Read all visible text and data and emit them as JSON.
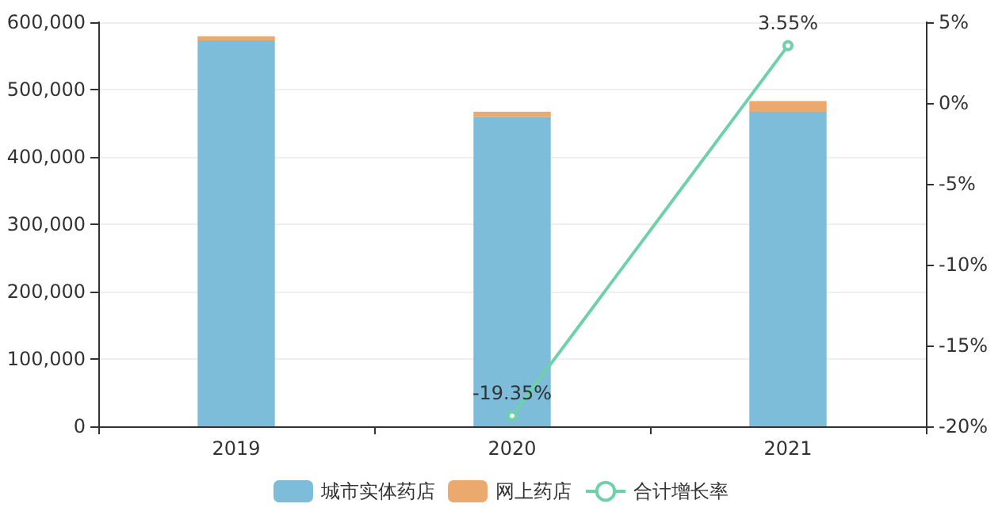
{
  "chart_data": {
    "type": "bar",
    "categories": [
      "2019",
      "2020",
      "2021"
    ],
    "stacked": true,
    "series": [
      {
        "name": "城市实体药店",
        "color": "#7dbdd9",
        "values": [
          573000,
          459000,
          467000
        ]
      },
      {
        "name": "网上药店",
        "color": "#eba96e",
        "values": [
          6000,
          8000,
          16000
        ]
      },
      {
        "name": "合计增长率",
        "type": "line",
        "axis": "y2",
        "color": "#6fd1a9",
        "values": [
          null,
          -19.35,
          3.55
        ],
        "value_labels": [
          null,
          "-19.35%",
          "3.55%"
        ],
        "marker": "circle"
      }
    ],
    "ylim": [
      0,
      600000
    ],
    "yticks": [
      0,
      {
        "value": 100000,
        "label": "100,000"
      },
      {
        "value": 200000,
        "label": "200,000"
      },
      {
        "value": 300000,
        "label": "300,000"
      },
      {
        "value": 400000,
        "label": "400,000"
      },
      {
        "value": 500000,
        "label": "500,000"
      },
      {
        "value": 600000,
        "label": "600,000"
      }
    ],
    "y2lim": [
      -20,
      5
    ],
    "y2ticks": [
      {
        "value": -20,
        "label": "-20%"
      },
      {
        "value": -15,
        "label": "-15%"
      },
      {
        "value": -10,
        "label": "-10%"
      },
      {
        "value": -5,
        "label": "-5%"
      },
      {
        "value": 0,
        "label": "0%"
      },
      {
        "value": 5,
        "label": "5%"
      }
    ],
    "grid": "y",
    "legend": "bottom"
  }
}
